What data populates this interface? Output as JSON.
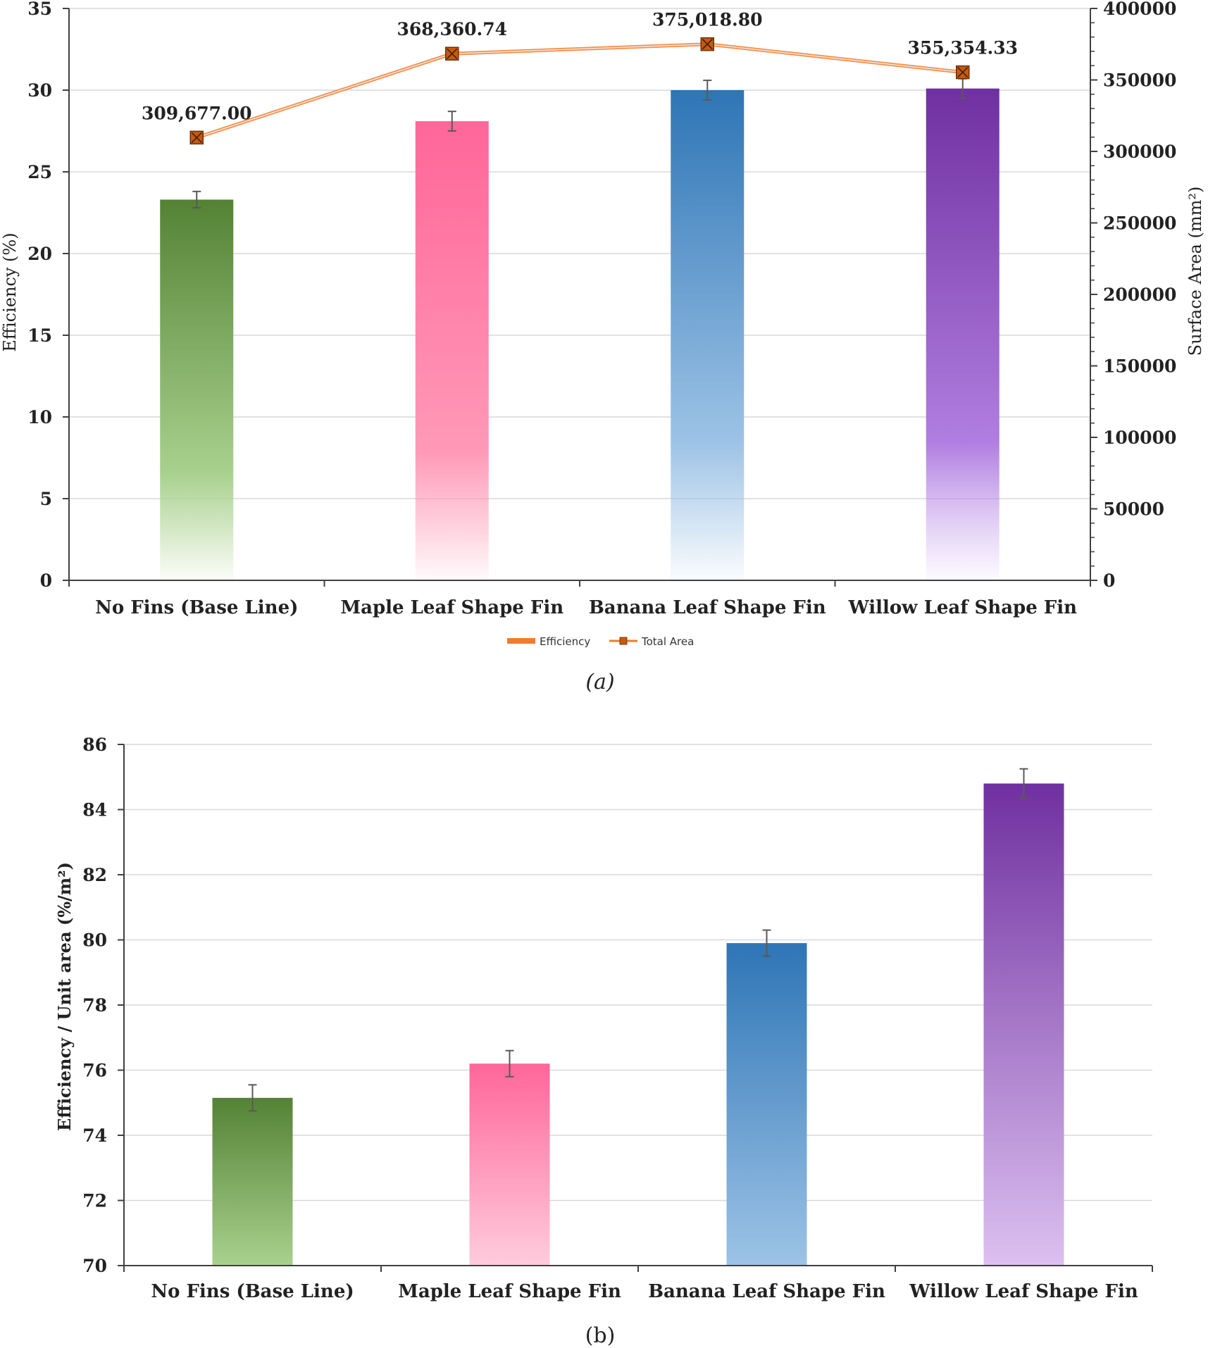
{
  "colors": {
    "green": "#548235",
    "pink": "#ff6699",
    "blue": "#2e75b6",
    "purple": "#7030a0",
    "line": "#ed7d31",
    "marker": "#c55a11",
    "grid": "#d9d9d9",
    "axis": "#404040"
  },
  "chart_data": [
    {
      "type": "bar",
      "panel_caption": "(a)",
      "categories": [
        "No Fins (Base Line)",
        "Maple Leaf Shape Fin",
        "Banana Leaf Shape Fin",
        "Willow Leaf Shape Fin"
      ],
      "y_axis": {
        "title": "Efficiency (%)",
        "ylim": [
          0,
          35
        ],
        "ticks": [
          "0",
          "5",
          "10",
          "15",
          "20",
          "25",
          "30",
          "35"
        ]
      },
      "y2_axis": {
        "title": "Surface Area (mm²)",
        "ylim": [
          0,
          400000
        ],
        "ticks": [
          "0",
          "50000",
          "100000",
          "150000",
          "200000",
          "250000",
          "300000",
          "350000",
          "400000"
        ]
      },
      "series": [
        {
          "name": "Efficiency",
          "type": "bar",
          "axis": "left",
          "values": [
            23.3,
            28.1,
            30.0,
            30.1
          ],
          "error": [
            0.5,
            0.6,
            0.6,
            0.6
          ]
        },
        {
          "name": "Total Area",
          "type": "line",
          "axis": "right",
          "values": [
            309677.0,
            368360.74,
            375018.8,
            355354.33
          ],
          "data_labels": [
            "309,677.00",
            "368,360.74",
            "375,018.80",
            "355,354.33"
          ]
        }
      ],
      "legend": {
        "position": "bottom",
        "entries": [
          "Efficiency",
          "Total Area"
        ]
      }
    },
    {
      "type": "bar",
      "panel_caption": "(b)",
      "categories": [
        "No Fins (Base Line)",
        "Maple Leaf Shape Fin",
        "Banana Leaf Shape Fin",
        "Willow Leaf Shape Fin"
      ],
      "y_axis": {
        "title": "Efficiency / Unit area (%/m²)",
        "ylim": [
          70,
          86
        ],
        "ticks": [
          "70",
          "72",
          "74",
          "76",
          "78",
          "80",
          "82",
          "84",
          "86"
        ]
      },
      "series": [
        {
          "name": "Efficiency / Unit area",
          "type": "bar",
          "values": [
            75.15,
            76.2,
            79.9,
            84.8
          ],
          "error": [
            0.4,
            0.4,
            0.4,
            0.45
          ]
        }
      ]
    }
  ]
}
